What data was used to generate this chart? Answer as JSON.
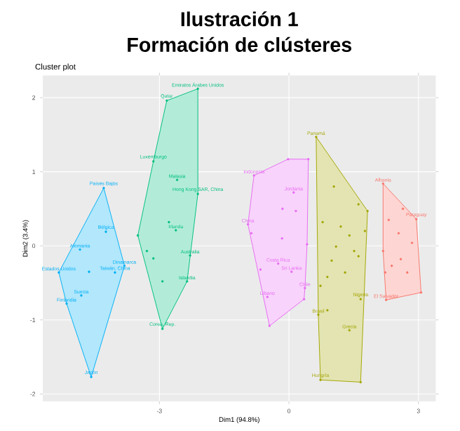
{
  "chart_data": {
    "type": "scatter",
    "title": "Ilustración 1",
    "subtitle": "Formación de clústeres",
    "xlabel": "Dim1 (94.8%)",
    "ylabel": "Dim2 (3.4%)",
    "xlim": [
      -5.7,
      3.4
    ],
    "ylim": [
      -2.1,
      2.3
    ],
    "xticks": [
      -3,
      0,
      3
    ],
    "yticks": [
      -2,
      -1,
      0,
      1,
      2
    ],
    "grid": true,
    "marker": "circle",
    "series": [
      {
        "color": "#00B0F6",
        "x": [
          -4.29,
          -4.24,
          -4.84,
          -4.63,
          -5.33,
          -3.81,
          -4.03,
          -4.81,
          -5.15,
          -4.58
        ],
        "values": [
          0.78,
          0.19,
          -0.05,
          -0.35,
          -0.36,
          -0.27,
          -0.36,
          -0.67,
          -0.78,
          -1.77
        ]
      },
      {
        "color": "#00BF7D",
        "x": [
          -2.11,
          -2.83,
          -3.14,
          -2.59,
          -2.11,
          -2.78,
          -2.62,
          -3.5,
          -3.29,
          -3.14,
          -2.29,
          -2.93,
          -2.36,
          -2.93
        ],
        "values": [
          2.12,
          1.96,
          1.14,
          0.89,
          0.7,
          0.32,
          0.21,
          0.14,
          -0.07,
          -0.17,
          -0.13,
          -0.48,
          -0.48,
          -1.12
        ]
      },
      {
        "color": "#E76BF3",
        "x": [
          -0.02,
          0.45,
          -0.81,
          0.11,
          -0.15,
          0.16,
          -0.95,
          -0.87,
          -0.16,
          0.42,
          -0.25,
          -0.66,
          0.06,
          0.37,
          0.35,
          -0.5,
          -0.45
        ],
        "values": [
          1.17,
          1.17,
          0.95,
          0.72,
          0.5,
          0.47,
          0.29,
          0.17,
          0.1,
          0.02,
          -0.24,
          -0.32,
          -0.35,
          -0.57,
          -0.72,
          -0.69,
          -1.08
        ]
      },
      {
        "color": "#A3A500",
        "x": [
          0.63,
          1.04,
          1.61,
          1.82,
          0.78,
          1.2,
          1.4,
          1.09,
          1.51,
          1.61,
          0.99,
          1.3,
          0.89,
          0.73,
          1.66,
          0.89,
          0.68,
          1.4,
          0.73,
          1.66,
          1.76
        ],
        "values": [
          1.47,
          0.8,
          0.56,
          0.47,
          0.32,
          0.26,
          0.14,
          -0.01,
          -0.07,
          -0.14,
          -0.2,
          -0.36,
          -0.42,
          -0.54,
          -0.72,
          -0.87,
          -0.93,
          -1.14,
          -1.81,
          -1.84,
          0.2
        ]
      },
      {
        "color": "#F8766D",
        "x": [
          2.18,
          2.64,
          2.95,
          2.31,
          2.54,
          2.85,
          2.18,
          2.59,
          2.38,
          2.74,
          2.23,
          3.06,
          2.25
        ],
        "values": [
          0.84,
          0.5,
          0.36,
          0.35,
          0.17,
          0.04,
          -0.07,
          -0.18,
          -0.27,
          -0.36,
          -0.36,
          -0.63,
          -0.73
        ]
      }
    ],
    "annotations": [
      "Cluster plot",
      {
        "text": "Países Bajos",
        "x": -4.29,
        "y": 0.78
      },
      {
        "text": "Bélgica",
        "x": -4.24,
        "y": 0.19
      },
      {
        "text": "Alemania",
        "x": -4.84,
        "y": -0.05
      },
      {
        "text": "Estados Unidos",
        "x": -5.33,
        "y": -0.36
      },
      {
        "text": "Dinamarca",
        "x": -3.81,
        "y": -0.27
      },
      {
        "text": "Taiwán, China",
        "x": -4.03,
        "y": -0.36
      },
      {
        "text": "Suecia",
        "x": -4.81,
        "y": -0.67
      },
      {
        "text": "Finlandia",
        "x": -5.15,
        "y": -0.78
      },
      {
        "text": "Japón",
        "x": -4.58,
        "y": -1.77
      },
      {
        "text": "Emiratos Árabes Unidos",
        "x": -2.11,
        "y": 2.12
      },
      {
        "text": "Qatar",
        "x": -2.83,
        "y": 1.96
      },
      {
        "text": "Luxemburgo",
        "x": -3.14,
        "y": 1.14
      },
      {
        "text": "Malasia",
        "x": -2.59,
        "y": 0.89
      },
      {
        "text": "Hong Kong SAR, China",
        "x": -2.11,
        "y": 0.7
      },
      {
        "text": "Irlanda",
        "x": -2.62,
        "y": 0.21
      },
      {
        "text": "Australia",
        "x": -2.29,
        "y": -0.13
      },
      {
        "text": "Islandia",
        "x": -2.36,
        "y": -0.48
      },
      {
        "text": "Corea, Rep.",
        "x": -2.93,
        "y": -1.12
      },
      {
        "text": "Indonesia",
        "x": -0.81,
        "y": 0.95
      },
      {
        "text": "Jordania",
        "x": 0.11,
        "y": 0.72
      },
      {
        "text": "China",
        "x": -0.95,
        "y": 0.29
      },
      {
        "text": "Costa Rica",
        "x": -0.25,
        "y": -0.24
      },
      {
        "text": "Sri Lanka",
        "x": 0.06,
        "y": -0.35
      },
      {
        "text": "Chile",
        "x": 0.37,
        "y": -0.57
      },
      {
        "text": "Líbano",
        "x": -0.5,
        "y": -0.69
      },
      {
        "text": "Panamá",
        "x": 0.63,
        "y": 1.47
      },
      {
        "text": "Nigeria",
        "x": 1.66,
        "y": -0.72
      },
      {
        "text": "Brasil",
        "x": 0.68,
        "y": -0.93
      },
      {
        "text": "Grecia",
        "x": 1.4,
        "y": -1.14
      },
      {
        "text": "Hungría",
        "x": 0.73,
        "y": -1.81
      },
      {
        "text": "Albania",
        "x": 2.18,
        "y": 0.84
      },
      {
        "text": "Paraguay",
        "x": 2.95,
        "y": 0.36
      },
      {
        "text": "El Salvador",
        "x": 2.25,
        "y": -0.73
      }
    ]
  }
}
